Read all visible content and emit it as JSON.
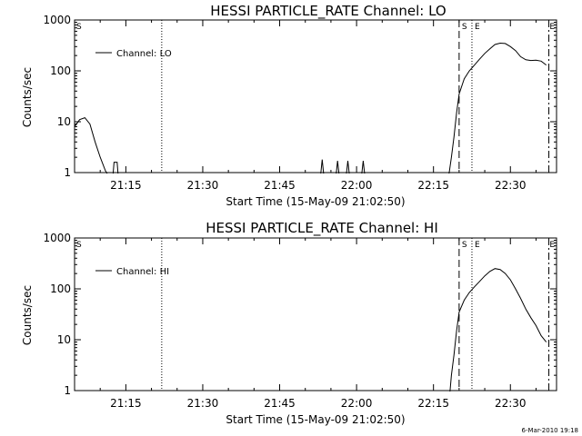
{
  "footer": "6-Mar-2010 19:18",
  "chart_data": [
    {
      "type": "line",
      "title": "HESSI PARTICLE_RATE Channel: LO",
      "xlabel": "Start Time (15-May-09 21:02:50)",
      "ylabel": "Counts/sec",
      "yscale": "log",
      "ylim": [
        1,
        1000
      ],
      "xlim": [
        "21:05",
        "22:39"
      ],
      "yticks": [
        "1",
        "10",
        "100",
        "1000"
      ],
      "xticks": [
        "21:15",
        "21:30",
        "21:45",
        "22:00",
        "22:15",
        "22:30"
      ],
      "legend": {
        "label": "Channel: LO",
        "placement": "top-left"
      },
      "corner_marks": {
        "left": "S",
        "right": "E"
      },
      "markers": [
        {
          "label": "S",
          "time": "22:20",
          "style": "dashed"
        },
        {
          "label": "E",
          "time": "22:22.5",
          "style": "dotted"
        }
      ],
      "vlines": [
        {
          "time": "21:22",
          "style": "dotted"
        },
        {
          "time": "22:37.5",
          "style": "dash-dot"
        }
      ],
      "series": [
        {
          "name": "Channel: LO",
          "segments": [
            [
              [
                "21:05",
                8
              ],
              [
                "21:06",
                11
              ],
              [
                "21:07",
                12
              ],
              [
                "21:08",
                9
              ],
              [
                "21:09",
                4
              ],
              [
                "21:10",
                2
              ],
              [
                "21:11",
                1.1
              ],
              [
                "21:11.5",
                0.9
              ]
            ],
            [
              [
                "21:12.5",
                0.9
              ],
              [
                "21:12.7",
                1.6
              ],
              [
                "21:13.3",
                1.6
              ],
              [
                "21:13.5",
                0.9
              ]
            ],
            [
              [
                "21:53",
                0.9
              ],
              [
                "21:53.3",
                1.8
              ],
              [
                "21:53.6",
                0.9
              ]
            ],
            [
              [
                "21:56",
                0.9
              ],
              [
                "21:56.3",
                1.7
              ],
              [
                "21:56.6",
                0.9
              ]
            ],
            [
              [
                "21:58",
                0.9
              ],
              [
                "21:58.3",
                1.7
              ],
              [
                "21:58.6",
                0.9
              ]
            ],
            [
              [
                "22:01",
                0.9
              ],
              [
                "22:01.3",
                1.7
              ],
              [
                "22:01.6",
                0.9
              ]
            ],
            [
              [
                "22:18",
                0.9
              ],
              [
                "22:18.5",
                2
              ],
              [
                "22:19",
                5
              ],
              [
                "22:19.5",
                15
              ],
              [
                "22:20",
                35
              ],
              [
                "22:21",
                70
              ],
              [
                "22:22",
                100
              ],
              [
                "22:23",
                130
              ],
              [
                "22:24",
                170
              ],
              [
                "22:25",
                220
              ],
              [
                "22:26",
                270
              ],
              [
                "22:27",
                330
              ],
              [
                "22:28",
                350
              ],
              [
                "22:29",
                345
              ],
              [
                "22:30",
                300
              ],
              [
                "22:31",
                250
              ],
              [
                "22:32",
                190
              ],
              [
                "22:33",
                165
              ],
              [
                "22:34",
                160
              ],
              [
                "22:35",
                162
              ],
              [
                "22:36",
                155
              ],
              [
                "22:37",
                130
              ]
            ]
          ]
        }
      ]
    },
    {
      "type": "line",
      "title": "HESSI PARTICLE_RATE Channel: HI",
      "xlabel": "Start Time (15-May-09 21:02:50)",
      "ylabel": "Counts/sec",
      "yscale": "log",
      "ylim": [
        1,
        1000
      ],
      "xlim": [
        "21:05",
        "22:39"
      ],
      "yticks": [
        "1",
        "10",
        "100",
        "1000"
      ],
      "xticks": [
        "21:15",
        "21:30",
        "21:45",
        "22:00",
        "22:15",
        "22:30"
      ],
      "legend": {
        "label": "Channel: HI",
        "placement": "top-left"
      },
      "corner_marks": {
        "left": "S",
        "right": "E"
      },
      "markers": [
        {
          "label": "S",
          "time": "22:20",
          "style": "dashed"
        },
        {
          "label": "E",
          "time": "22:22.5",
          "style": "dotted"
        }
      ],
      "vlines": [
        {
          "time": "21:22",
          "style": "dotted"
        },
        {
          "time": "22:37.5",
          "style": "dash-dot"
        }
      ],
      "series": [
        {
          "name": "Channel: HI",
          "segments": [
            [
              [
                "22:18.2",
                0.9
              ],
              [
                "22:18.5",
                2
              ],
              [
                "22:19",
                5
              ],
              [
                "22:19.5",
                15
              ],
              [
                "22:20",
                35
              ],
              [
                "22:21",
                60
              ],
              [
                "22:22",
                85
              ],
              [
                "22:23",
                110
              ],
              [
                "22:24",
                140
              ],
              [
                "22:25",
                180
              ],
              [
                "22:26",
                220
              ],
              [
                "22:27",
                250
              ],
              [
                "22:28",
                240
              ],
              [
                "22:29",
                200
              ],
              [
                "22:30",
                150
              ],
              [
                "22:31",
                100
              ],
              [
                "22:32",
                65
              ],
              [
                "22:33",
                40
              ],
              [
                "22:34",
                27
              ],
              [
                "22:35",
                19
              ],
              [
                "22:36",
                12
              ],
              [
                "22:37",
                9
              ]
            ]
          ]
        }
      ]
    }
  ]
}
